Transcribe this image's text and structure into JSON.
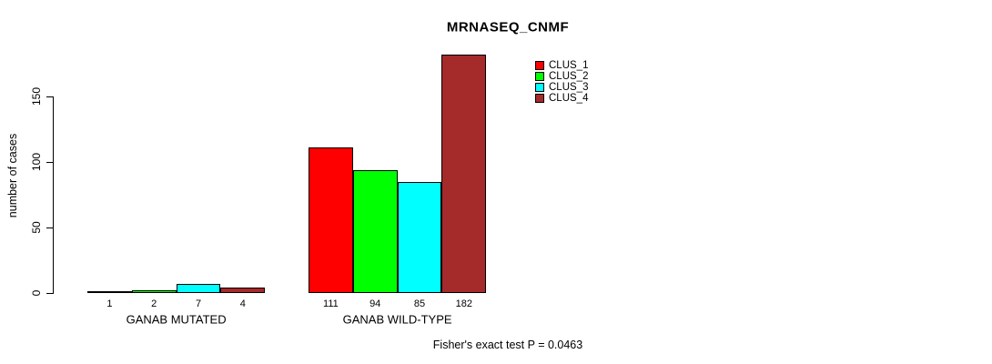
{
  "chart_data": {
    "type": "bar",
    "title": "MRNASEQ_CNMF",
    "ylabel": "number of cases",
    "xlabel": "",
    "categories": [
      "GANAB MUTATED",
      "GANAB WILD-TYPE"
    ],
    "series": [
      {
        "name": "CLUS_1",
        "color": "#FF0000",
        "values": [
          1,
          111
        ]
      },
      {
        "name": "CLUS_2",
        "color": "#00FF00",
        "values": [
          2,
          94
        ]
      },
      {
        "name": "CLUS_3",
        "color": "#00FFFF",
        "values": [
          7,
          85
        ]
      },
      {
        "name": "CLUS_4",
        "color": "#A52A2A",
        "values": [
          4,
          182
        ]
      }
    ],
    "bar_value_labels": [
      [
        "1",
        "2",
        "7",
        "4"
      ],
      [
        "111",
        "94",
        "85",
        "182"
      ]
    ],
    "yticks": [
      0,
      50,
      100,
      150
    ],
    "ylim": [
      0,
      182
    ],
    "grid": false,
    "legend_position": "top-right",
    "annotation": "Fisher's exact test P = 0.0463",
    "background_color": "#ffffff",
    "axis_color": "#000000"
  }
}
